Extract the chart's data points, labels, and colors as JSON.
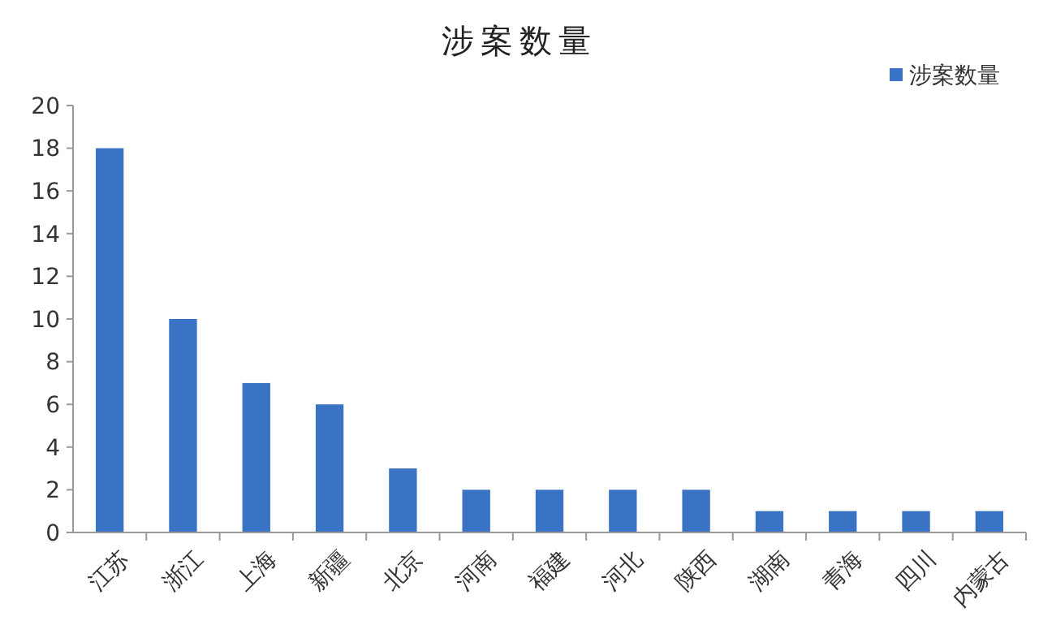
{
  "chart_data": {
    "type": "bar",
    "title": "涉案数量",
    "categories": [
      "江苏",
      "浙江",
      "上海",
      "新疆",
      "北京",
      "河南",
      "福建",
      "河北",
      "陕西",
      "湖南",
      "青海",
      "四川",
      "内蒙古"
    ],
    "series": [
      {
        "name": "涉案数量",
        "color": "#3a72c4",
        "values": [
          18,
          10,
          7,
          6,
          3,
          2,
          2,
          2,
          2,
          1,
          1,
          1,
          1
        ]
      }
    ],
    "ylim": [
      0,
      20
    ],
    "yticks": [
      0,
      2,
      4,
      6,
      8,
      10,
      12,
      14,
      16,
      18,
      20
    ],
    "grid": false,
    "legend": "top right"
  }
}
